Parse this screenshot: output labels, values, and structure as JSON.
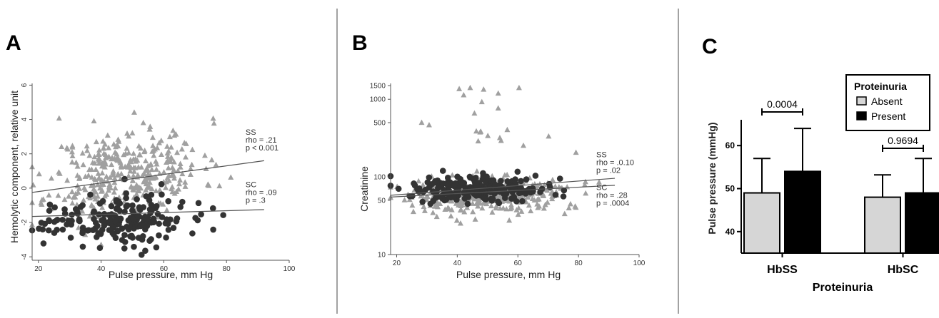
{
  "chart_data": [
    {
      "panel": "A",
      "type": "scatter",
      "xlabel": "Pulse pressure, mm Hg",
      "ylabel": "Hemolytic component, relative unit",
      "xlim": [
        18,
        100
      ],
      "ylim": [
        -4.2,
        6.1
      ],
      "xticks": [
        20,
        40,
        60,
        80,
        100
      ],
      "yticks": [
        -4,
        -2,
        0,
        2,
        4,
        6
      ],
      "series": [
        {
          "name": "SS",
          "marker": "triangle",
          "color": "#a0a0a0",
          "n": 380,
          "x_mean": 48,
          "x_sd": 12,
          "y_mean": 0.8,
          "y_sd": 1.3,
          "slope": 0.024,
          "x_range": [
            18,
            92
          ],
          "y_range": [
            -3.5,
            5.2
          ]
        },
        {
          "name": "SC",
          "marker": "circle",
          "color": "#333333",
          "n": 200,
          "x_mean": 45,
          "x_sd": 11,
          "y_mean": -1.8,
          "y_sd": 0.75,
          "slope": 0.004,
          "x_range": [
            18,
            92
          ],
          "y_range": [
            -4.0,
            2.6
          ]
        }
      ],
      "fit_lines": [
        {
          "series": "SS",
          "x": [
            18,
            92
          ],
          "y": [
            -0.25,
            1.6
          ]
        },
        {
          "series": "SC",
          "x": [
            18,
            92
          ],
          "y": [
            -1.65,
            -1.25
          ]
        }
      ],
      "annotations": [
        {
          "lines": [
            "SS",
            "rho = .21",
            "p < 0.001"
          ],
          "x": 92,
          "y": 2.7
        },
        {
          "lines": [
            "SC",
            "rho = .09",
            "p = .3"
          ],
          "x": 92,
          "y": -0.35
        }
      ]
    },
    {
      "panel": "B",
      "type": "scatter",
      "xlabel": "Pulse pressure, mm Hg",
      "ylabel": "Creatinine",
      "yscale": "log",
      "xlim": [
        18,
        100
      ],
      "ylim": [
        10,
        1600
      ],
      "xticks": [
        20,
        40,
        60,
        80,
        100
      ],
      "yticks": [
        10,
        50,
        100,
        500,
        1000,
        1500
      ],
      "series": [
        {
          "name": "SC",
          "marker": "triangle",
          "color": "#a0a0a0",
          "n": 400,
          "x_mean": 50,
          "x_sd": 13,
          "y_logmean": 1.76,
          "y_logsd": 0.12,
          "x_range": [
            18,
            92
          ],
          "y_range": [
            14,
            1400
          ]
        },
        {
          "name": "SS",
          "marker": "circle",
          "color": "#333333",
          "n": 220,
          "x_mean": 47,
          "x_sd": 11,
          "y_logmean": 1.85,
          "y_logsd": 0.09,
          "x_range": [
            18,
            92
          ],
          "y_range": [
            45,
            280
          ]
        }
      ],
      "fit_lines": [
        {
          "series": "SS",
          "x": [
            18,
            92
          ],
          "y": [
            58,
            96
          ]
        },
        {
          "series": "SC",
          "x": [
            18,
            92
          ],
          "y": [
            55,
            78
          ]
        }
      ],
      "annotations": [
        {
          "lines": [
            "SS",
            "rho = .0.10",
            "p = .02"
          ],
          "x": 92,
          "y": 145
        },
        {
          "lines": [
            "SC",
            "rho = .28",
            "p = .0004"
          ],
          "x": 92,
          "y": 55
        }
      ]
    },
    {
      "panel": "C",
      "type": "bar",
      "xlabel": "Proteinuria",
      "ylabel": "Pulse pressure (mmHg)",
      "ylim": [
        35,
        66
      ],
      "yticks": [
        40,
        50,
        60
      ],
      "categories": [
        "HbSS",
        "HbSC"
      ],
      "series": [
        {
          "name": "Absent",
          "color": "#d6d6d6",
          "values": [
            49,
            48
          ],
          "errors": [
            8,
            5.2
          ]
        },
        {
          "name": "Present",
          "color": "#000000",
          "values": [
            54,
            49
          ],
          "errors": [
            10,
            8
          ]
        }
      ],
      "legend": {
        "title": "Proteinuria",
        "placement": "top-right",
        "entries": [
          "Absent",
          "Present"
        ]
      },
      "significance": [
        {
          "category": "HbSS",
          "label": "0.0004"
        },
        {
          "category": "HbSC",
          "label": "0.9694"
        }
      ]
    }
  ]
}
